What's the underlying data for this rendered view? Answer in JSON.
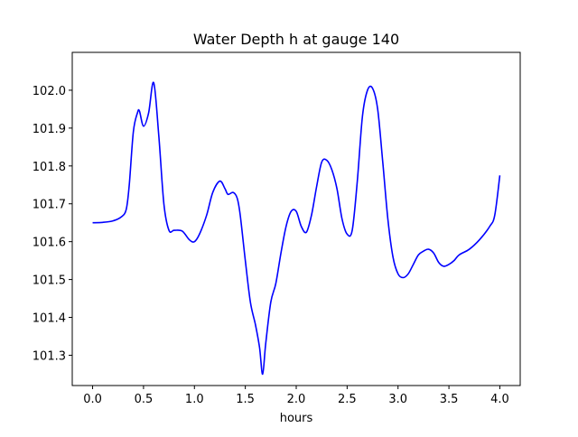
{
  "chart_data": {
    "type": "line",
    "title": "Water Depth h at gauge 140",
    "xlabel": "hours",
    "ylabel": "",
    "xlim": [
      -0.2,
      4.2
    ],
    "ylim": [
      101.22,
      102.1
    ],
    "xticks": [
      0.0,
      0.5,
      1.0,
      1.5,
      2.0,
      2.5,
      3.0,
      3.5,
      4.0
    ],
    "xtick_labels": [
      "0.0",
      "0.5",
      "1.0",
      "1.5",
      "2.0",
      "2.5",
      "3.0",
      "3.5",
      "4.0"
    ],
    "yticks": [
      101.3,
      101.4,
      101.5,
      101.6,
      101.7,
      101.8,
      101.9,
      102.0
    ],
    "ytick_labels": [
      "101.3",
      "101.4",
      "101.5",
      "101.6",
      "101.7",
      "101.8",
      "101.9",
      "102.0"
    ],
    "grid": false,
    "series": [
      {
        "color": "#0000ff",
        "x": [
          0.0,
          0.1,
          0.2,
          0.28,
          0.33,
          0.36,
          0.4,
          0.44,
          0.46,
          0.5,
          0.55,
          0.6,
          0.65,
          0.7,
          0.75,
          0.8,
          0.88,
          0.95,
          1.0,
          1.05,
          1.12,
          1.18,
          1.25,
          1.3,
          1.33,
          1.38,
          1.42,
          1.45,
          1.5,
          1.55,
          1.6,
          1.64,
          1.67,
          1.7,
          1.75,
          1.8,
          1.85,
          1.9,
          1.95,
          2.0,
          2.05,
          2.1,
          2.15,
          2.2,
          2.25,
          2.3,
          2.35,
          2.4,
          2.45,
          2.5,
          2.55,
          2.6,
          2.65,
          2.7,
          2.75,
          2.8,
          2.85,
          2.9,
          2.95,
          3.0,
          3.05,
          3.1,
          3.15,
          3.2,
          3.25,
          3.3,
          3.35,
          3.4,
          3.45,
          3.5,
          3.55,
          3.6,
          3.7,
          3.8,
          3.9,
          3.95,
          4.0
        ],
        "y": [
          101.65,
          101.651,
          101.655,
          101.665,
          101.685,
          101.75,
          101.89,
          101.94,
          101.945,
          101.905,
          101.94,
          102.02,
          101.88,
          101.7,
          101.63,
          101.63,
          101.628,
          101.605,
          101.6,
          101.62,
          101.67,
          101.73,
          101.76,
          101.74,
          101.725,
          101.73,
          101.715,
          101.67,
          101.55,
          101.44,
          101.38,
          101.32,
          101.25,
          101.33,
          101.44,
          101.49,
          101.57,
          101.64,
          101.68,
          101.68,
          101.64,
          101.625,
          101.67,
          101.745,
          101.81,
          101.815,
          101.79,
          101.74,
          101.66,
          101.62,
          101.63,
          101.76,
          101.93,
          102.0,
          102.005,
          101.95,
          101.81,
          101.66,
          101.56,
          101.515,
          101.505,
          101.515,
          101.54,
          101.565,
          101.575,
          101.58,
          101.57,
          101.545,
          101.535,
          101.54,
          101.55,
          101.565,
          101.58,
          101.605,
          101.64,
          101.67,
          101.775
        ]
      }
    ]
  }
}
